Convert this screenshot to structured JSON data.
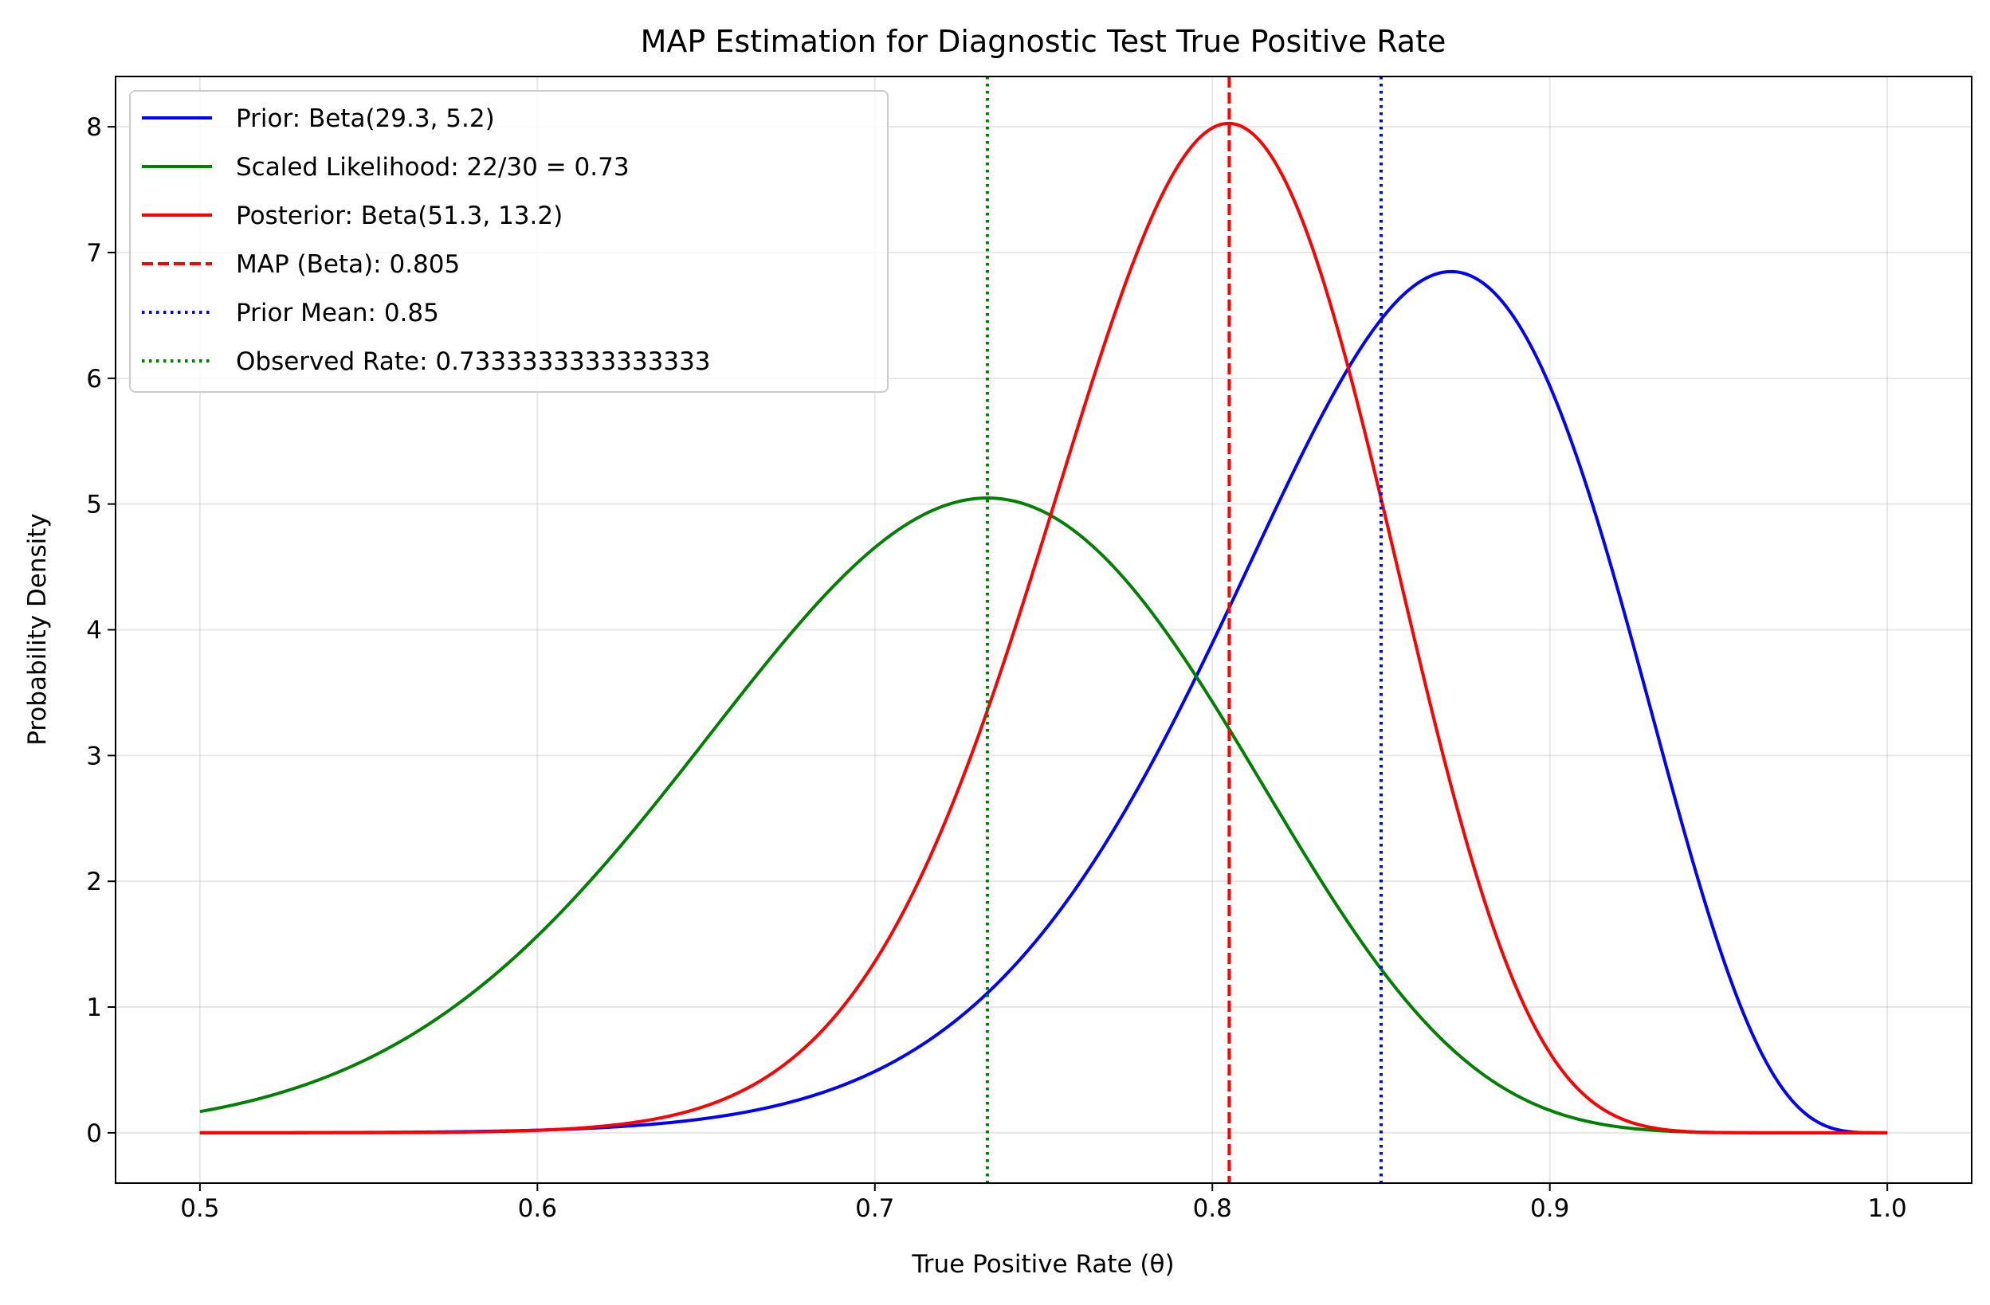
{
  "chart_data": {
    "type": "line",
    "title": "MAP Estimation for Diagnostic Test True Positive Rate",
    "xlabel": "True Positive Rate (θ)",
    "ylabel": "Probability Density",
    "xlim": [
      0.475,
      1.025
    ],
    "ylim": [
      -0.4,
      8.4
    ],
    "xticks": [
      0.5,
      0.6,
      0.7,
      0.8,
      0.9,
      1.0
    ],
    "xtick_labels": [
      "0.5",
      "0.6",
      "0.7",
      "0.8",
      "0.9",
      "1.0"
    ],
    "yticks": [
      0,
      1,
      2,
      3,
      4,
      5,
      6,
      7,
      8
    ],
    "ytick_labels": [
      "0",
      "1",
      "2",
      "3",
      "4",
      "5",
      "6",
      "7",
      "8"
    ],
    "grid": true,
    "legend_position": "top-left",
    "series": [
      {
        "name": "Prior: Beta(29.3, 5.2)",
        "kind": "beta",
        "alpha": 29.3,
        "beta": 5.2,
        "color": "#0000ff",
        "style": "solid"
      },
      {
        "name": "Scaled Likelihood: 22/30 = 0.73",
        "kind": "beta",
        "alpha": 23,
        "beta": 9,
        "color": "#008000",
        "style": "solid"
      },
      {
        "name": "Posterior: Beta(51.3, 13.2)",
        "kind": "beta",
        "alpha": 51.3,
        "beta": 13.2,
        "color": "#ff0000",
        "style": "solid"
      },
      {
        "name": "MAP (Beta): 0.805",
        "kind": "vline",
        "x": 0.805,
        "color": "#ff0000",
        "style": "dashed"
      },
      {
        "name": "Prior Mean: 0.85",
        "kind": "vline",
        "x": 0.85,
        "color": "#0000ff",
        "style": "dotted"
      },
      {
        "name": "Observed Rate: 0.7333333333333333",
        "kind": "vline",
        "x": 0.7333333333333333,
        "color": "#008000",
        "style": "dotted"
      }
    ]
  }
}
